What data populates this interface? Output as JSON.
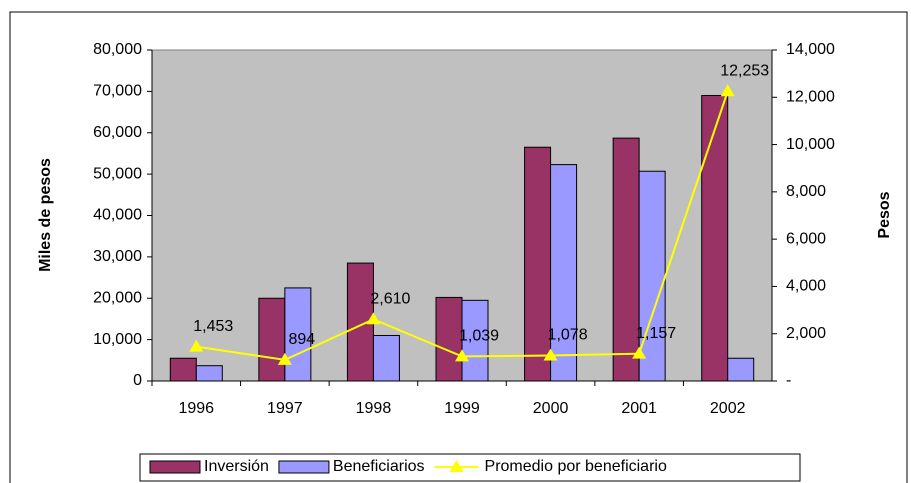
{
  "chart_data": {
    "type": "bar",
    "categories": [
      "1996",
      "1997",
      "1998",
      "1999",
      "2000",
      "2001",
      "2002"
    ],
    "series": [
      {
        "name": "Inversión",
        "color": "#993366",
        "values": [
          5500,
          20000,
          28500,
          20200,
          56500,
          58700,
          69000
        ]
      },
      {
        "name": "Beneficiarios",
        "color": "#9999ff",
        "values": [
          3700,
          22500,
          11000,
          19500,
          52300,
          50700,
          5500
        ]
      },
      {
        "name": "Promedio por beneficiario",
        "color": "#ffff00",
        "type": "line",
        "axis": "y2",
        "values": [
          1453,
          894,
          2610,
          1039,
          1078,
          1157,
          12253
        ],
        "value_labels": [
          "1,453",
          "894",
          "2,610",
          "1,039",
          "1,078",
          "1,157",
          "12,253"
        ]
      }
    ],
    "ylabel": "Miles de pesos",
    "y2label": "Pesos",
    "ylim": [
      0,
      80000
    ],
    "yticks": [
      0,
      {
        "value": 10000,
        "label": "10,000"
      },
      {
        "value": 20000,
        "label": "20,000"
      },
      {
        "value": 30000,
        "label": "30,000"
      },
      {
        "value": 40000,
        "label": "40,000"
      },
      {
        "value": 50000,
        "label": "50,000"
      },
      {
        "value": 60000,
        "label": "60,000"
      },
      {
        "value": 70000,
        "label": "70,000"
      },
      {
        "value": 80000,
        "label": "80,000"
      }
    ],
    "y2lim": [
      0,
      14000
    ],
    "y2ticks": [
      {
        "value": 0,
        "label": "-"
      },
      {
        "value": 2000,
        "label": "2,000"
      },
      {
        "value": 4000,
        "label": "4,000"
      },
      {
        "value": 6000,
        "label": "6,000"
      },
      {
        "value": 8000,
        "label": "8,000"
      },
      {
        "value": 10000,
        "label": "10,000"
      },
      {
        "value": 12000,
        "label": "12,000"
      },
      {
        "value": 14000,
        "label": "14,000"
      }
    ],
    "legend": "bottom"
  }
}
